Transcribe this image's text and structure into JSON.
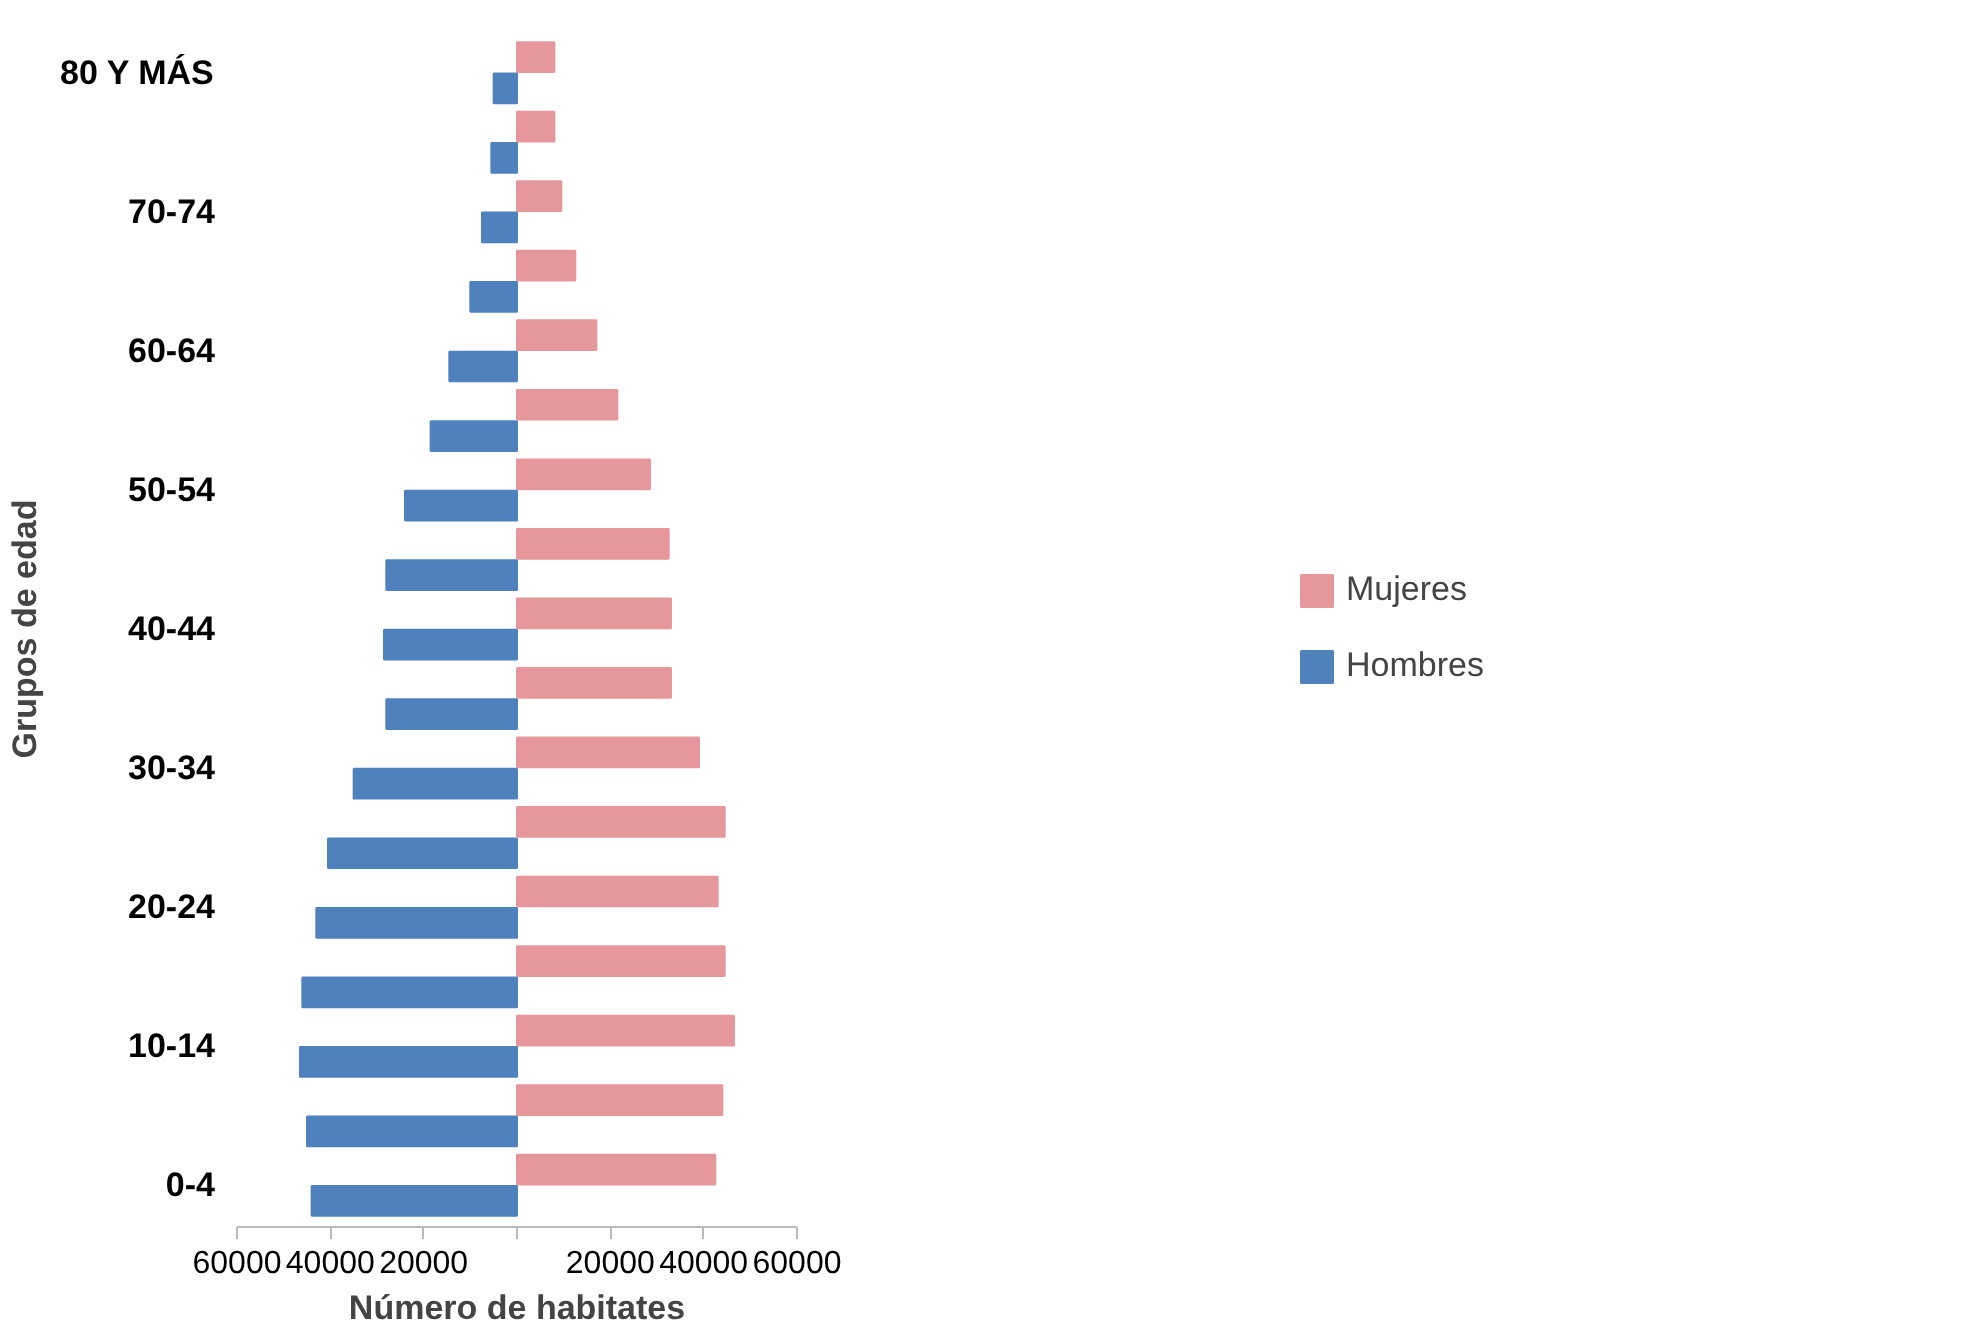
{
  "chart_data": {
    "type": "bar",
    "orientation": "horizontal",
    "xlabel": "Número de habitates",
    "ylabel": "Grupos de edad",
    "categories": [
      "80 Y MÁS",
      null,
      "70-74",
      null,
      "60-64",
      null,
      "50-54",
      null,
      "40-44",
      null,
      "30-34",
      null,
      "20-24",
      null,
      "10-14",
      null,
      "0-4"
    ],
    "series": [
      {
        "name": "Mujeres",
        "color": "#e6979b",
        "values": [
          8000,
          8000,
          9500,
          12500,
          17000,
          21500,
          28500,
          32500,
          33000,
          33000,
          39000,
          44500,
          43000,
          44500,
          46500,
          44000,
          42500
        ]
      },
      {
        "name": "Hombres",
        "color": "#4f81bd",
        "values": [
          -5000,
          -5500,
          -7500,
          -10000,
          -14500,
          -18500,
          -24000,
          -28000,
          -28500,
          -28000,
          -35000,
          -40500,
          -43000,
          -46000,
          -46500,
          -45000,
          -44000
        ]
      }
    ],
    "xlim": [
      -60000,
      60000
    ],
    "xticks": [
      {
        "value": -60000,
        "label": "60000"
      },
      {
        "value": -40000,
        "label": "40000"
      },
      {
        "value": -20000,
        "label": "20000"
      },
      {
        "value": 0,
        "label": null
      },
      {
        "value": 20000,
        "label": "20000"
      },
      {
        "value": 40000,
        "label": "40000"
      },
      {
        "value": 60000,
        "label": "60000"
      }
    ],
    "grid": false,
    "legend": "right"
  }
}
